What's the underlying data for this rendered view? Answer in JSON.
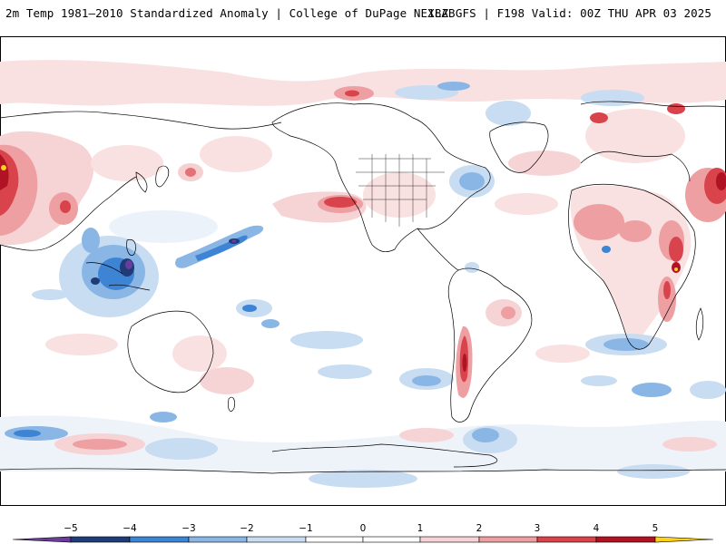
{
  "header": {
    "left_title": "2m Temp 1981–2010 Standardized Anomaly | College of DuPage NEXLAB",
    "right_title": "18Z GFS | F198 Valid: 00Z THU APR 03 2025"
  },
  "map": {
    "projection": "cylindrical equidistant (global)",
    "variable": "2m temperature standardized anomaly"
  },
  "legend": {
    "ticks": [
      "−5",
      "−4",
      "−3",
      "−2",
      "−1",
      "0",
      "1",
      "2",
      "3",
      "4",
      "5"
    ],
    "colors": {
      "neg5": "#6a3d9a",
      "neg4": "#1f3c78",
      "neg3": "#3d84d4",
      "neg2": "#8ab6e6",
      "neg1": "#c8dcf2",
      "zero_low": "#ffffff",
      "zero_high": "#ffffff",
      "pos1": "#f6d4d6",
      "pos2": "#ee9fa2",
      "pos3": "#d9434b",
      "pos4": "#b01323",
      "pos5": "#7a0010",
      "pos_extreme": "#ffd21a"
    }
  }
}
